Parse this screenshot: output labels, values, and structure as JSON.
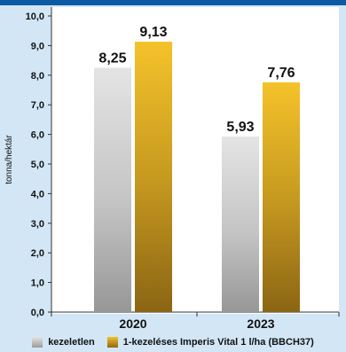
{
  "chart_data": {
    "type": "bar",
    "categories": [
      "2020",
      "2023"
    ],
    "series": [
      {
        "name": "kezeletlen",
        "values": [
          8.25,
          5.93
        ],
        "labels": [
          "8,25",
          "5,93"
        ],
        "color": "#bdbdbd"
      },
      {
        "name": "1-kezeléses Imperis Vital 1 l/ha (BBCH37)",
        "values": [
          9.13,
          7.76
        ],
        "labels": [
          "9,13",
          "7,76"
        ],
        "color": "#d4a31c"
      }
    ],
    "ylabel": "tonna/hektár",
    "ylim": [
      0,
      10
    ],
    "yticks": [
      0,
      1,
      2,
      3,
      4,
      5,
      6,
      7,
      8,
      9,
      10
    ],
    "ytick_labels": [
      "0,0",
      "1,0",
      "2,0",
      "3,0",
      "4,0",
      "5,0",
      "6,0",
      "7,0",
      "8,0",
      "9,0",
      "10,0"
    ],
    "grid": false,
    "legend_position": "bottom",
    "colors": {
      "background": "#d2e6f5",
      "plot_area": "#ffffff",
      "top_bar": "#0b5aa6"
    }
  }
}
